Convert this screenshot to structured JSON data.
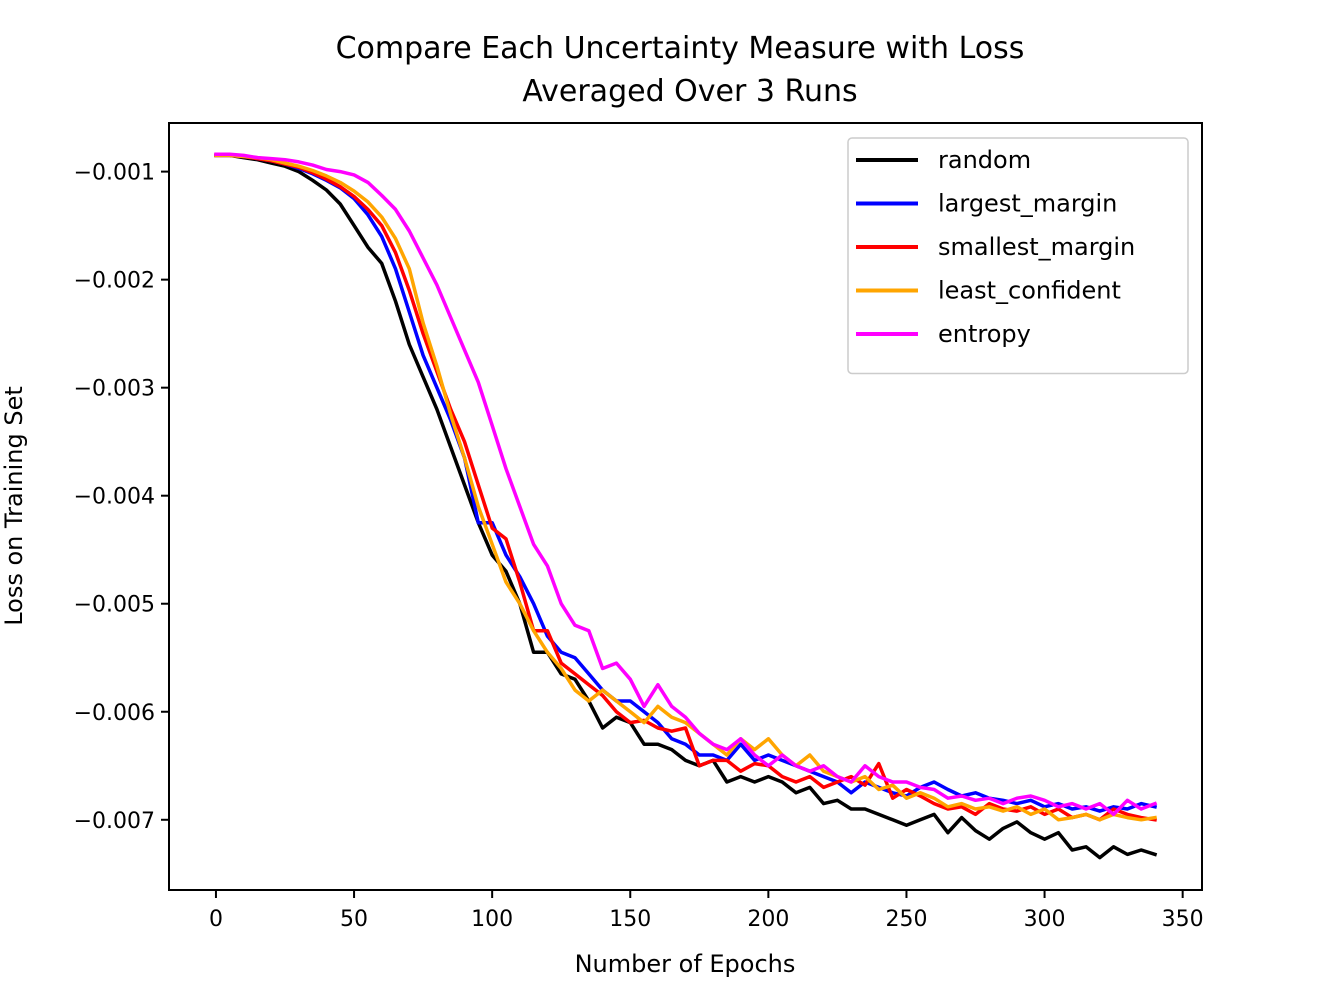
{
  "chart_data": {
    "type": "line",
    "title": [
      "Compare Each Uncertainty Measure with Loss",
      "Averaged Over 3 Runs"
    ],
    "xlabel": "Number of Epochs",
    "ylabel": "Loss on Training Set",
    "xlim": [
      -17,
      357
    ],
    "ylim": [
      -0.00765,
      -0.00055
    ],
    "xticks": [
      0,
      50,
      100,
      150,
      200,
      250,
      300,
      350
    ],
    "xtick_labels": [
      "0",
      "50",
      "100",
      "150",
      "200",
      "250",
      "300",
      "350"
    ],
    "yticks": [
      -0.001,
      -0.002,
      -0.003,
      -0.004,
      -0.005,
      -0.006,
      -0.007
    ],
    "ytick_labels": [
      "−0.001",
      "−0.002",
      "−0.003",
      "−0.004",
      "−0.005",
      "−0.006",
      "−0.007"
    ],
    "grid": false,
    "legend_position": "top-right",
    "x": [
      0,
      5,
      10,
      15,
      20,
      25,
      30,
      35,
      40,
      45,
      50,
      55,
      60,
      65,
      70,
      75,
      80,
      85,
      90,
      95,
      100,
      105,
      110,
      115,
      120,
      125,
      130,
      135,
      140,
      145,
      150,
      155,
      160,
      165,
      170,
      175,
      180,
      185,
      190,
      195,
      200,
      205,
      210,
      215,
      220,
      225,
      230,
      235,
      240,
      245,
      250,
      255,
      260,
      265,
      270,
      275,
      280,
      285,
      290,
      295,
      300,
      305,
      310,
      315,
      320,
      325,
      330,
      335,
      340
    ],
    "series": [
      {
        "name": "random",
        "color": "#000000",
        "values": [
          -0.00085,
          -0.00085,
          -0.00087,
          -0.00089,
          -0.00092,
          -0.00095,
          -0.001,
          -0.00108,
          -0.00117,
          -0.0013,
          -0.0015,
          -0.0017,
          -0.00185,
          -0.0022,
          -0.0026,
          -0.0029,
          -0.0032,
          -0.00355,
          -0.0039,
          -0.00425,
          -0.00455,
          -0.0047,
          -0.005,
          -0.00545,
          -0.00545,
          -0.00565,
          -0.0057,
          -0.0059,
          -0.00615,
          -0.00605,
          -0.0061,
          -0.0063,
          -0.0063,
          -0.00635,
          -0.00645,
          -0.0065,
          -0.00645,
          -0.00665,
          -0.0066,
          -0.00665,
          -0.0066,
          -0.00665,
          -0.00675,
          -0.0067,
          -0.00685,
          -0.00682,
          -0.0069,
          -0.0069,
          -0.00695,
          -0.007,
          -0.00705,
          -0.007,
          -0.00695,
          -0.00712,
          -0.00698,
          -0.0071,
          -0.00718,
          -0.00708,
          -0.00702,
          -0.00712,
          -0.00718,
          -0.00712,
          -0.00728,
          -0.00725,
          -0.00735,
          -0.00725,
          -0.00732,
          -0.00728,
          -0.00732
        ]
      },
      {
        "name": "largest_margin",
        "color": "#0000ff",
        "values": [
          -0.00085,
          -0.00085,
          -0.00086,
          -0.00088,
          -0.0009,
          -0.00093,
          -0.00097,
          -0.00102,
          -0.00108,
          -0.00115,
          -0.00125,
          -0.0014,
          -0.0016,
          -0.0019,
          -0.0023,
          -0.0027,
          -0.003,
          -0.0033,
          -0.00365,
          -0.00425,
          -0.00425,
          -0.00455,
          -0.00475,
          -0.005,
          -0.0053,
          -0.00545,
          -0.0055,
          -0.00565,
          -0.0058,
          -0.0059,
          -0.0059,
          -0.006,
          -0.0061,
          -0.00625,
          -0.0063,
          -0.0064,
          -0.0064,
          -0.00645,
          -0.0063,
          -0.00645,
          -0.0064,
          -0.00645,
          -0.0065,
          -0.00655,
          -0.0066,
          -0.00665,
          -0.00675,
          -0.00665,
          -0.0067,
          -0.00675,
          -0.00678,
          -0.0067,
          -0.00665,
          -0.00672,
          -0.00678,
          -0.00675,
          -0.0068,
          -0.00682,
          -0.00685,
          -0.00682,
          -0.00688,
          -0.00685,
          -0.0069,
          -0.00688,
          -0.00692,
          -0.00688,
          -0.0069,
          -0.00685,
          -0.00688
        ]
      },
      {
        "name": "smallest_margin",
        "color": "#ff0000",
        "values": [
          -0.00085,
          -0.00085,
          -0.00086,
          -0.00088,
          -0.0009,
          -0.00093,
          -0.00096,
          -0.00101,
          -0.00107,
          -0.00114,
          -0.00123,
          -0.00135,
          -0.0015,
          -0.00175,
          -0.0021,
          -0.0025,
          -0.00285,
          -0.0032,
          -0.0035,
          -0.0039,
          -0.0043,
          -0.0044,
          -0.0048,
          -0.00525,
          -0.00525,
          -0.00555,
          -0.00565,
          -0.00575,
          -0.00585,
          -0.006,
          -0.0061,
          -0.00608,
          -0.00615,
          -0.00618,
          -0.00615,
          -0.0065,
          -0.00645,
          -0.00645,
          -0.00655,
          -0.00648,
          -0.0065,
          -0.0066,
          -0.00665,
          -0.0066,
          -0.0067,
          -0.00665,
          -0.0066,
          -0.00668,
          -0.00648,
          -0.0068,
          -0.00672,
          -0.00678,
          -0.00685,
          -0.0069,
          -0.00688,
          -0.00695,
          -0.00685,
          -0.0069,
          -0.00692,
          -0.00688,
          -0.00695,
          -0.0069,
          -0.00698,
          -0.00695,
          -0.007,
          -0.0069,
          -0.00695,
          -0.00698,
          -0.007
        ]
      },
      {
        "name": "least_confident",
        "color": "#ffa500",
        "values": [
          -0.00085,
          -0.00085,
          -0.00086,
          -0.00087,
          -0.00089,
          -0.00092,
          -0.00095,
          -0.00099,
          -0.00104,
          -0.0011,
          -0.00118,
          -0.00128,
          -0.00142,
          -0.00162,
          -0.0019,
          -0.0024,
          -0.0028,
          -0.00325,
          -0.00365,
          -0.0041,
          -0.00445,
          -0.0048,
          -0.005,
          -0.00525,
          -0.00545,
          -0.0056,
          -0.0058,
          -0.0059,
          -0.0058,
          -0.0059,
          -0.006,
          -0.0061,
          -0.00595,
          -0.00605,
          -0.0061,
          -0.0062,
          -0.0063,
          -0.0064,
          -0.00625,
          -0.00635,
          -0.00625,
          -0.0064,
          -0.0065,
          -0.0064,
          -0.00655,
          -0.0066,
          -0.00665,
          -0.0066,
          -0.00672,
          -0.00668,
          -0.0068,
          -0.00675,
          -0.0068,
          -0.00688,
          -0.00685,
          -0.0069,
          -0.00688,
          -0.00692,
          -0.00688,
          -0.00695,
          -0.0069,
          -0.007,
          -0.00698,
          -0.00695,
          -0.007,
          -0.00695,
          -0.00698,
          -0.007,
          -0.00698
        ]
      },
      {
        "name": "entropy",
        "color": "#ff00ff",
        "values": [
          -0.00084,
          -0.00084,
          -0.00085,
          -0.00087,
          -0.00088,
          -0.00089,
          -0.00091,
          -0.00094,
          -0.00098,
          -0.001,
          -0.00103,
          -0.0011,
          -0.00122,
          -0.00135,
          -0.00155,
          -0.0018,
          -0.00205,
          -0.00235,
          -0.00265,
          -0.00295,
          -0.00335,
          -0.00375,
          -0.0041,
          -0.00445,
          -0.00465,
          -0.005,
          -0.0052,
          -0.00525,
          -0.0056,
          -0.00555,
          -0.0057,
          -0.00595,
          -0.00575,
          -0.00595,
          -0.00605,
          -0.0062,
          -0.0063,
          -0.00635,
          -0.00625,
          -0.0064,
          -0.0065,
          -0.0064,
          -0.0065,
          -0.00655,
          -0.0065,
          -0.0066,
          -0.00665,
          -0.0065,
          -0.0066,
          -0.00665,
          -0.00665,
          -0.0067,
          -0.00672,
          -0.0068,
          -0.00678,
          -0.00682,
          -0.0068,
          -0.00685,
          -0.0068,
          -0.00678,
          -0.00682,
          -0.00688,
          -0.00685,
          -0.0069,
          -0.00685,
          -0.00695,
          -0.00682,
          -0.0069,
          -0.00685
        ]
      }
    ]
  }
}
